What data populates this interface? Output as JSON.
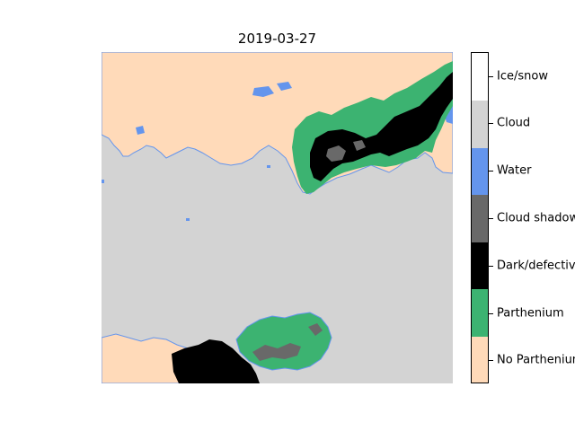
{
  "title": "2019-03-27",
  "legend": {
    "classes": [
      {
        "label": "Ice/snow",
        "color": "#ffffff"
      },
      {
        "label": "Cloud",
        "color": "#d3d3d3"
      },
      {
        "label": "Water",
        "color": "#6495ed"
      },
      {
        "label": "Cloud shadow",
        "color": "#696969"
      },
      {
        "label": "Dark/defective",
        "color": "#000000"
      },
      {
        "label": "Parthenium",
        "color": "#3cb371"
      },
      {
        "label": "No Parthenium",
        "color": "#ffdab9"
      }
    ]
  }
}
